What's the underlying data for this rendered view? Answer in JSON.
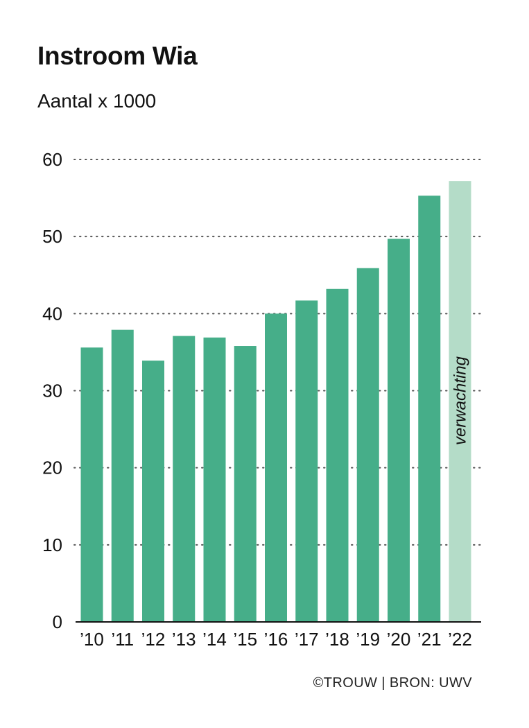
{
  "title": "Instroom Wia",
  "subtitle": "Aantal x 1000",
  "footer": "©TROUW  | BRON: UWV",
  "colors": {
    "bar": "#46ae89",
    "bar_forecast": "#b4dcc8",
    "gridline": "#555555",
    "axis": "#111111"
  },
  "chart_data": {
    "type": "bar",
    "categories": [
      "’10",
      "’11",
      "’12",
      "’13",
      "’14",
      "’15",
      "’16",
      "’17",
      "’18",
      "’19",
      "’20",
      "’21",
      "’22"
    ],
    "values": [
      35.6,
      37.9,
      33.9,
      37.1,
      36.9,
      35.8,
      40.0,
      41.7,
      43.2,
      45.9,
      49.7,
      55.3,
      57.2
    ],
    "forecast_index": 12,
    "annotation": "verwachting",
    "yticks": [
      0,
      10,
      20,
      30,
      40,
      50,
      60
    ],
    "ylim": [
      0,
      60
    ],
    "grid": true,
    "grid_style": "dotted"
  }
}
